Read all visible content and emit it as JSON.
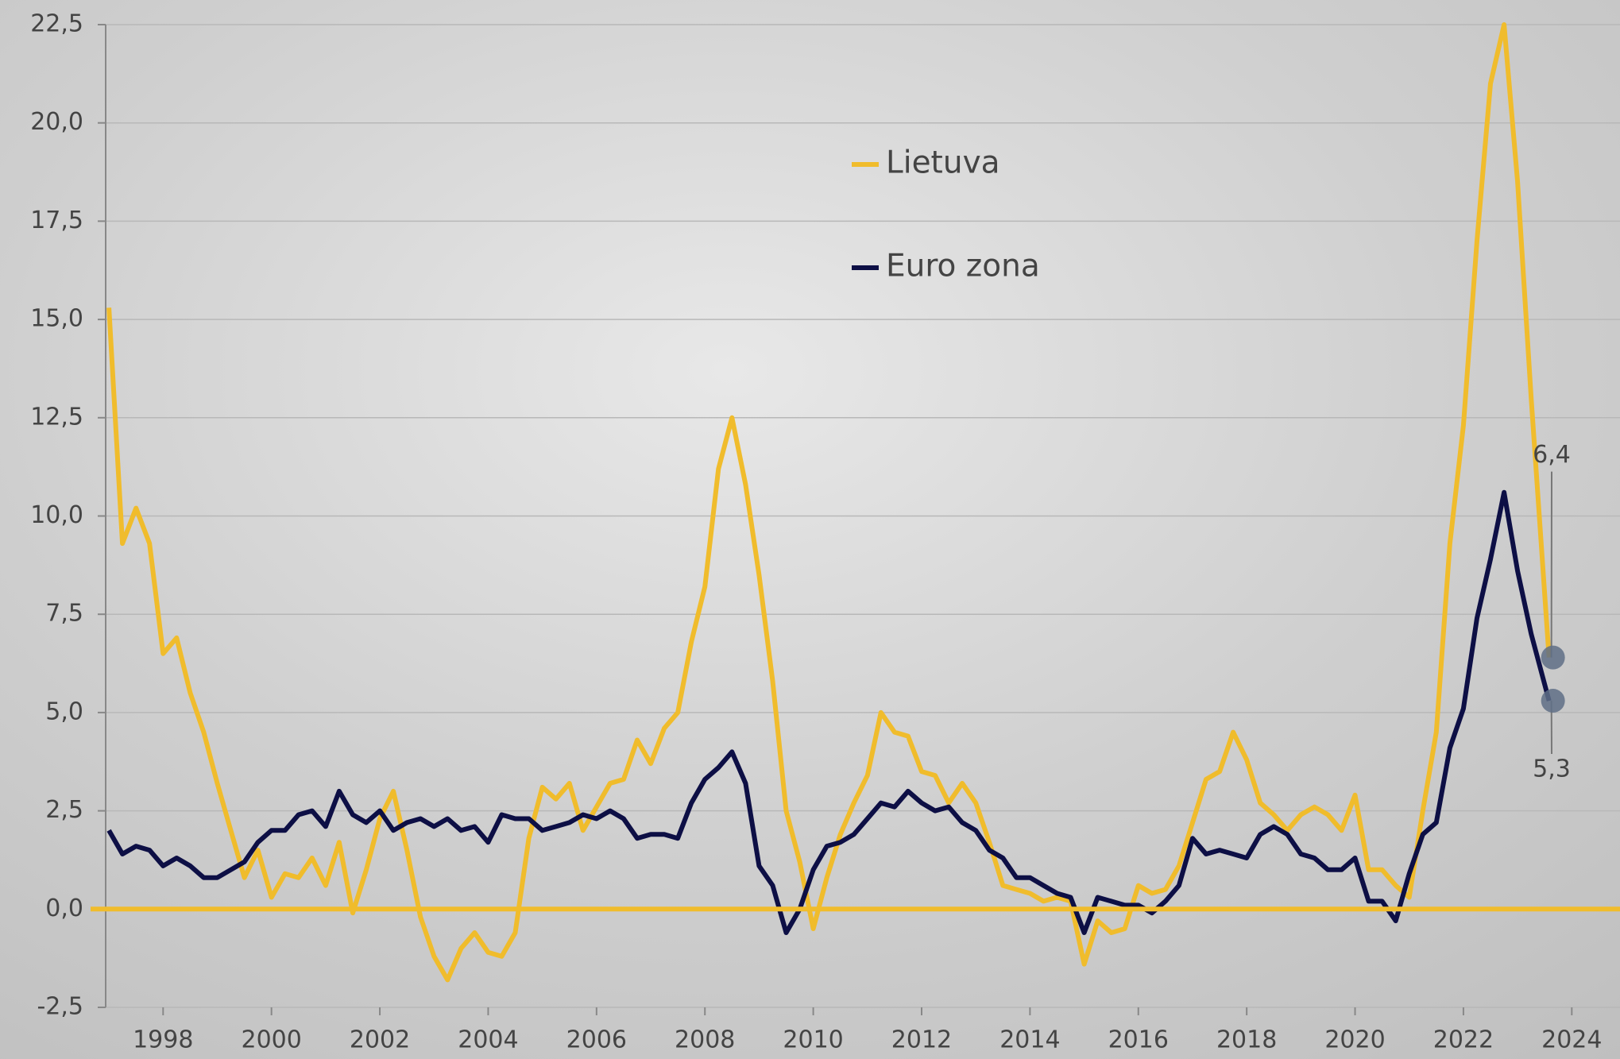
{
  "chart_data": {
    "type": "line",
    "x": [
      1997.0,
      1997.25,
      1997.5,
      1997.75,
      1998.0,
      1998.25,
      1998.5,
      1998.75,
      1999.0,
      1999.25,
      1999.5,
      1999.75,
      2000.0,
      2000.25,
      2000.5,
      2000.75,
      2001.0,
      2001.25,
      2001.5,
      2001.75,
      2002.0,
      2002.25,
      2002.5,
      2002.75,
      2003.0,
      2003.25,
      2003.5,
      2003.75,
      2004.0,
      2004.25,
      2004.5,
      2004.75,
      2005.0,
      2005.25,
      2005.5,
      2005.75,
      2006.0,
      2006.25,
      2006.5,
      2006.75,
      2007.0,
      2007.25,
      2007.5,
      2007.75,
      2008.0,
      2008.25,
      2008.5,
      2008.75,
      2009.0,
      2009.25,
      2009.5,
      2009.75,
      2010.0,
      2010.25,
      2010.5,
      2010.75,
      2011.0,
      2011.25,
      2011.5,
      2011.75,
      2012.0,
      2012.25,
      2012.5,
      2012.75,
      2013.0,
      2013.25,
      2013.5,
      2013.75,
      2014.0,
      2014.25,
      2014.5,
      2014.75,
      2015.0,
      2015.25,
      2015.5,
      2015.75,
      2016.0,
      2016.25,
      2016.5,
      2016.75,
      2017.0,
      2017.25,
      2017.5,
      2017.75,
      2018.0,
      2018.25,
      2018.5,
      2018.75,
      2019.0,
      2019.25,
      2019.5,
      2019.75,
      2020.0,
      2020.25,
      2020.5,
      2020.75,
      2021.0,
      2021.25,
      2021.5,
      2021.75,
      2022.0,
      2022.25,
      2022.5,
      2022.75,
      2023.0,
      2023.25,
      2023.58
    ],
    "series": [
      {
        "name": "Lietuva",
        "color": "#f0bc2c",
        "values": [
          15.3,
          9.3,
          10.2,
          9.3,
          6.5,
          6.9,
          5.5,
          4.5,
          3.2,
          2.0,
          0.8,
          1.5,
          0.3,
          0.9,
          0.8,
          1.3,
          0.6,
          1.7,
          -0.1,
          1.0,
          2.3,
          3.0,
          1.5,
          -0.2,
          -1.2,
          -1.8,
          -1.0,
          -0.6,
          -1.1,
          -1.2,
          -0.6,
          1.8,
          3.1,
          2.8,
          3.2,
          2.0,
          2.6,
          3.2,
          3.3,
          4.3,
          3.7,
          4.6,
          5.0,
          6.8,
          8.2,
          11.2,
          12.5,
          10.8,
          8.5,
          5.8,
          2.5,
          1.2,
          -0.5,
          0.8,
          1.9,
          2.7,
          3.4,
          5.0,
          4.5,
          4.4,
          3.5,
          3.4,
          2.7,
          3.2,
          2.7,
          1.7,
          0.6,
          0.5,
          0.4,
          0.2,
          0.3,
          0.2,
          -1.4,
          -0.3,
          -0.6,
          -0.5,
          0.6,
          0.4,
          0.5,
          1.1,
          2.2,
          3.3,
          3.5,
          4.5,
          3.8,
          2.7,
          2.4,
          2.0,
          2.4,
          2.6,
          2.4,
          2.0,
          2.9,
          1.0,
          1.0,
          0.6,
          0.3,
          2.5,
          4.5,
          9.3,
          12.3,
          17.0,
          21.0,
          22.5,
          18.5,
          13.0,
          6.4
        ]
      },
      {
        "name": "Euro zona",
        "color": "#0d0f45",
        "values": [
          2.0,
          1.4,
          1.6,
          1.5,
          1.1,
          1.3,
          1.1,
          0.8,
          0.8,
          1.0,
          1.2,
          1.7,
          2.0,
          2.0,
          2.4,
          2.5,
          2.1,
          3.0,
          2.4,
          2.2,
          2.5,
          2.0,
          2.2,
          2.3,
          2.1,
          2.3,
          2.0,
          2.1,
          1.7,
          2.4,
          2.3,
          2.3,
          2.0,
          2.1,
          2.2,
          2.4,
          2.3,
          2.5,
          2.3,
          1.8,
          1.9,
          1.9,
          1.8,
          2.7,
          3.3,
          3.6,
          4.0,
          3.2,
          1.1,
          0.6,
          -0.6,
          0.0,
          1.0,
          1.6,
          1.7,
          1.9,
          2.3,
          2.7,
          2.6,
          3.0,
          2.7,
          2.5,
          2.6,
          2.2,
          2.0,
          1.5,
          1.3,
          0.8,
          0.8,
          0.6,
          0.4,
          0.3,
          -0.6,
          0.3,
          0.2,
          0.1,
          0.1,
          -0.1,
          0.2,
          0.6,
          1.8,
          1.4,
          1.5,
          1.4,
          1.3,
          1.9,
          2.1,
          1.9,
          1.4,
          1.3,
          1.0,
          1.0,
          1.3,
          0.2,
          0.2,
          -0.3,
          0.9,
          1.9,
          2.2,
          4.1,
          5.1,
          7.4,
          8.9,
          10.6,
          8.6,
          7.0,
          5.3
        ]
      }
    ],
    "annotations": [
      {
        "x": 2023.58,
        "value": 6.4,
        "label": "6,4"
      },
      {
        "x": 2023.58,
        "value": 5.3,
        "label": "5,3"
      }
    ],
    "xlim": [
      1996.94,
      2024.89
    ],
    "xticks": [
      1998,
      2000,
      2002,
      2004,
      2006,
      2008,
      2010,
      2012,
      2014,
      2016,
      2018,
      2020,
      2022,
      2024
    ],
    "ylim": [
      -2.5,
      22.5
    ],
    "yticks": [
      {
        "value": -2.5,
        "label": "-2,5"
      },
      {
        "value": 0,
        "label": "0,0"
      },
      {
        "value": 2.5,
        "label": "2,5"
      },
      {
        "value": 5,
        "label": "5,0"
      },
      {
        "value": 7.5,
        "label": "7,5"
      },
      {
        "value": 10,
        "label": "10,0"
      },
      {
        "value": 12.5,
        "label": "12,5"
      },
      {
        "value": 15,
        "label": "15,0"
      },
      {
        "value": 17.5,
        "label": "17,5"
      },
      {
        "value": 20,
        "label": "20,0"
      },
      {
        "value": 22.5,
        "label": "22,5"
      }
    ],
    "grid": true
  }
}
